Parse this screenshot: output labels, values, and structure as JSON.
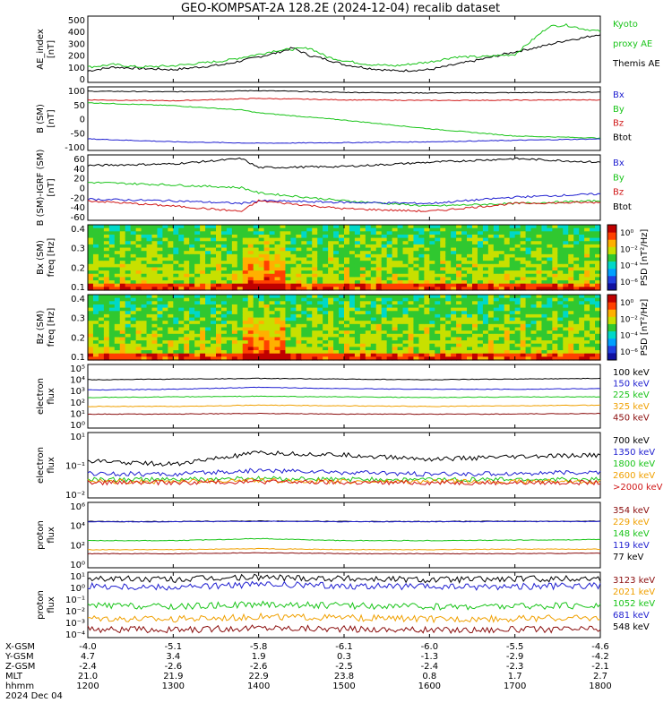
{
  "title": "GEO-KOMPSAT-2A 128.2E (2024-12-04) recalib dataset",
  "colors": {
    "black": "#000000",
    "blue": "#1f1fd0",
    "green": "#19c419",
    "red": "#d01818",
    "orange": "#f0a000",
    "darkred": "#8a0c0c",
    "lightgreen": "#36d636"
  },
  "chart_data": [
    {
      "id": "ae",
      "type": "line",
      "ylabel": "AE_index\n[nT]",
      "yticks": [
        "500",
        "400",
        "300",
        "200",
        "100",
        "0"
      ],
      "ylim": [
        0,
        520
      ],
      "legend": [
        {
          "label": "Kyoto",
          "color": "green"
        },
        {
          "label": "proxy AE",
          "color": "green"
        },
        {
          "label": "Themis AE",
          "color": "black"
        }
      ],
      "series": [
        {
          "name": "Themis AE",
          "color": "black",
          "x": [
            12.0,
            12.3,
            12.6,
            13.0,
            13.3,
            13.6,
            14.0,
            14.2,
            14.4,
            14.6,
            14.8,
            15.0,
            15.3,
            15.6,
            16.0,
            16.3,
            16.6,
            17.0,
            17.3,
            17.6,
            17.8,
            18.0
          ],
          "y": [
            90,
            120,
            110,
            100,
            120,
            140,
            200,
            230,
            270,
            210,
            180,
            140,
            110,
            90,
            100,
            140,
            180,
            240,
            280,
            330,
            350,
            380
          ]
        },
        {
          "name": "Kyoto proxy AE",
          "color": "green",
          "x": [
            12.0,
            12.3,
            12.6,
            13.0,
            13.3,
            13.6,
            14.0,
            14.2,
            14.4,
            14.6,
            14.8,
            15.0,
            15.3,
            15.6,
            16.0,
            16.3,
            16.6,
            17.0,
            17.2,
            17.4,
            17.6,
            17.8,
            18.0
          ],
          "y": [
            120,
            140,
            120,
            130,
            150,
            170,
            220,
            250,
            260,
            270,
            200,
            170,
            140,
            130,
            160,
            200,
            200,
            220,
            330,
            440,
            450,
            420,
            400
          ]
        }
      ]
    },
    {
      "id": "bsm",
      "type": "line",
      "ylabel": "B (SM)\n[nT]",
      "yticks": [
        "100",
        "50",
        "0",
        "-50",
        "-100"
      ],
      "ylim": [
        -105,
        115
      ],
      "legend": [
        {
          "label": "Bx",
          "color": "blue"
        },
        {
          "label": "By",
          "color": "green"
        },
        {
          "label": "Bz",
          "color": "red"
        },
        {
          "label": "Btot",
          "color": "black"
        }
      ],
      "series": [
        {
          "name": "Btot",
          "color": "black",
          "x": [
            12,
            13,
            14,
            15,
            16,
            17,
            18
          ],
          "y": [
            100,
            98,
            102,
            96,
            94,
            95,
            97
          ]
        },
        {
          "name": "Bz",
          "color": "red",
          "x": [
            12,
            13,
            14,
            15,
            16,
            17,
            18
          ],
          "y": [
            70,
            67,
            75,
            70,
            68,
            69,
            70
          ]
        },
        {
          "name": "By",
          "color": "green",
          "x": [
            12,
            13,
            13.8,
            14,
            15,
            16,
            17,
            18
          ],
          "y": [
            60,
            50,
            35,
            25,
            0,
            -30,
            -55,
            -62
          ]
        },
        {
          "name": "Bx",
          "color": "blue",
          "x": [
            12,
            13,
            14,
            15,
            16,
            17,
            18
          ],
          "y": [
            -65,
            -75,
            -80,
            -78,
            -75,
            -70,
            -65
          ]
        }
      ]
    },
    {
      "id": "bdiff",
      "type": "line",
      "ylabel": "B (SM)-IGRF (SM)\n[nT]",
      "yticks": [
        "60",
        "40",
        "20",
        "0",
        "-20",
        "-40",
        "-60"
      ],
      "ylim": [
        -62,
        62
      ],
      "legend": [
        {
          "label": "Bx",
          "color": "blue"
        },
        {
          "label": "By",
          "color": "green"
        },
        {
          "label": "Bz",
          "color": "red"
        },
        {
          "label": "Btot",
          "color": "black"
        }
      ],
      "series": [
        {
          "name": "Btot",
          "color": "black",
          "x": [
            12,
            13,
            13.8,
            14,
            15,
            16,
            17,
            18
          ],
          "y": [
            42,
            45,
            55,
            38,
            40,
            48,
            55,
            48
          ]
        },
        {
          "name": "By",
          "color": "green",
          "x": [
            12,
            13,
            13.8,
            14,
            15,
            16,
            17,
            18
          ],
          "y": [
            10,
            5,
            0,
            -10,
            -25,
            -35,
            -30,
            -25
          ]
        },
        {
          "name": "Bx",
          "color": "blue",
          "x": [
            12,
            13,
            13.8,
            14,
            15,
            16,
            17,
            18
          ],
          "y": [
            -22,
            -25,
            -30,
            -25,
            -28,
            -30,
            -18,
            -12
          ]
        },
        {
          "name": "Bz",
          "color": "red",
          "x": [
            12,
            13,
            13.8,
            14,
            15,
            16,
            17,
            18
          ],
          "y": [
            -25,
            -35,
            -45,
            -25,
            -40,
            -45,
            -30,
            -28
          ]
        }
      ]
    },
    {
      "id": "bx_spec",
      "type": "heatmap",
      "ylabel": "Bx (SM)\nfreq [Hz]",
      "yticks": [
        "0.4",
        "0.3",
        "0.2",
        "0.1"
      ],
      "ylim": [
        0.02,
        0.5
      ],
      "colorbar_label": "PSD [nT²/Hz]",
      "colorbar_ticks": [
        "10⁰",
        "10⁻²",
        "10⁻⁴",
        "10⁻⁶"
      ]
    },
    {
      "id": "bz_spec",
      "type": "heatmap",
      "ylabel": "Bz (SM)\nfreq [Hz]",
      "yticks": [
        "0.4",
        "0.3",
        "0.2",
        "0.1"
      ],
      "ylim": [
        0.02,
        0.5
      ],
      "colorbar_label": "PSD [nT²/Hz]",
      "colorbar_ticks": [
        "10⁰",
        "10⁻²",
        "10⁻⁴",
        "10⁻⁶"
      ]
    },
    {
      "id": "eflux1",
      "type": "line",
      "ylog": true,
      "ylabel": "electron\nflux",
      "yticks": [
        "10⁵",
        "10⁴",
        "10³",
        "10²",
        "10¹",
        "10⁰"
      ],
      "ylim": [
        0,
        5
      ],
      "legend": [
        {
          "label": "100 keV",
          "color": "black"
        },
        {
          "label": "150 keV",
          "color": "blue"
        },
        {
          "label": "225 keV",
          "color": "green"
        },
        {
          "label": "325 keV",
          "color": "orange"
        },
        {
          "label": "450 keV",
          "color": "darkred"
        }
      ],
      "series": [
        {
          "name": "100 keV",
          "color": "black",
          "x": [
            12,
            13,
            14,
            15,
            16,
            17,
            18
          ],
          "y": [
            3.8,
            3.85,
            3.9,
            3.85,
            3.8,
            3.85,
            3.9
          ]
        },
        {
          "name": "150 keV",
          "color": "blue",
          "x": [
            12,
            13,
            14,
            15,
            16,
            17,
            18
          ],
          "y": [
            3.0,
            3.05,
            3.2,
            3.1,
            3.05,
            3.05,
            3.1
          ]
        },
        {
          "name": "225 keV",
          "color": "green",
          "x": [
            12,
            13,
            14,
            15,
            16,
            17,
            18
          ],
          "y": [
            2.4,
            2.45,
            2.5,
            2.45,
            2.4,
            2.45,
            2.45
          ]
        },
        {
          "name": "325 keV",
          "color": "orange",
          "x": [
            12,
            13,
            14,
            15,
            16,
            17,
            18
          ],
          "y": [
            1.7,
            1.7,
            1.8,
            1.75,
            1.7,
            1.75,
            1.8
          ]
        },
        {
          "name": "450 keV",
          "color": "darkred",
          "x": [
            12,
            13,
            14,
            15,
            16,
            17,
            18
          ],
          "y": [
            1.1,
            1.1,
            1.15,
            1.1,
            1.1,
            1.1,
            1.15
          ]
        }
      ]
    },
    {
      "id": "eflux2",
      "type": "line",
      "ylog": true,
      "ylabel": "electron\nflux",
      "yticks": [
        "10¹",
        "10⁻¹",
        "10⁻²"
      ],
      "ylim": [
        -2.2,
        1
      ],
      "legend": [
        {
          "label": "700 keV",
          "color": "black"
        },
        {
          "label": "1350 keV",
          "color": "blue"
        },
        {
          "label": "1800 keV",
          "color": "green"
        },
        {
          "label": "2600 keV",
          "color": "orange"
        },
        {
          "label": ">2000 keV",
          "color": "red"
        }
      ],
      "series": [
        {
          "name": "700 keV",
          "color": "black",
          "x": [
            12,
            13,
            14,
            15,
            16,
            17,
            18
          ],
          "y": [
            -0.4,
            -0.55,
            0.0,
            -0.1,
            -0.3,
            -0.2,
            -0.1
          ]
        },
        {
          "name": "1350 keV",
          "color": "blue",
          "x": [
            12,
            13,
            14,
            15,
            16,
            17,
            18
          ],
          "y": [
            -1.0,
            -1.05,
            -0.85,
            -0.95,
            -1.05,
            -1.0,
            -0.95
          ]
        },
        {
          "name": "1800 keV",
          "color": "green",
          "x": [
            12,
            13,
            14,
            15,
            16,
            17,
            18
          ],
          "y": [
            -1.3,
            -1.3,
            -1.25,
            -1.3,
            -1.3,
            -1.3,
            -1.3
          ]
        },
        {
          "name": "2600 keV",
          "color": "orange",
          "x": [
            12,
            13,
            14,
            15,
            16,
            17,
            18
          ],
          "y": [
            -1.4,
            -1.4,
            -1.35,
            -1.4,
            -1.4,
            -1.4,
            -1.4
          ]
        },
        {
          "name": ">2000 keV",
          "color": "red",
          "x": [
            12,
            13,
            14,
            15,
            16,
            17,
            18
          ],
          "y": [
            -1.45,
            -1.45,
            -1.4,
            -1.45,
            -1.45,
            -1.45,
            -1.45
          ]
        }
      ]
    },
    {
      "id": "pflux1",
      "type": "line",
      "ylog": true,
      "ylabel": "proton\nflux",
      "yticks": [
        "10⁶",
        "10⁴",
        "10²",
        "10⁰"
      ],
      "ylim": [
        -0.5,
        6
      ],
      "legend": [
        {
          "label": "354 keV",
          "color": "darkred"
        },
        {
          "label": "229 keV",
          "color": "orange"
        },
        {
          "label": "148 keV",
          "color": "green"
        },
        {
          "label": "119 keV",
          "color": "blue"
        },
        {
          "label": "77 keV",
          "color": "black"
        }
      ],
      "series": [
        {
          "name": "77 keV",
          "color": "black",
          "x": [
            12,
            13,
            14,
            15,
            16,
            17,
            18
          ],
          "y": [
            4.1,
            4.1,
            4.15,
            4.1,
            4.1,
            4.12,
            4.12
          ]
        },
        {
          "name": "119 keV",
          "color": "blue",
          "x": [
            12,
            13,
            14,
            15,
            16,
            17,
            18
          ],
          "y": [
            4.08,
            4.08,
            4.12,
            4.08,
            4.08,
            4.1,
            4.1
          ]
        },
        {
          "name": "148 keV",
          "color": "green",
          "x": [
            12,
            13,
            14,
            15,
            16,
            17,
            18
          ],
          "y": [
            2.2,
            2.2,
            2.4,
            2.2,
            2.2,
            2.25,
            2.3
          ]
        },
        {
          "name": "229 keV",
          "color": "orange",
          "x": [
            12,
            13,
            14,
            15,
            16,
            17,
            18
          ],
          "y": [
            1.3,
            1.3,
            1.4,
            1.3,
            1.3,
            1.35,
            1.35
          ]
        },
        {
          "name": "354 keV",
          "color": "darkred",
          "x": [
            12,
            13,
            14,
            15,
            16,
            17,
            18
          ],
          "y": [
            0.9,
            0.9,
            1.0,
            0.9,
            0.9,
            0.9,
            0.95
          ]
        }
      ]
    },
    {
      "id": "pflux2",
      "type": "line",
      "ylog": true,
      "ylabel": "proton\nflux",
      "yticks": [
        "10¹",
        "10⁰",
        "10⁻¹",
        "10⁻²",
        "10⁻³",
        "10⁻⁴"
      ],
      "ylim": [
        -4.2,
        1.1
      ],
      "legend": [
        {
          "label": "3123 keV",
          "color": "darkred"
        },
        {
          "label": "2021 keV",
          "color": "orange"
        },
        {
          "label": "1052 keV",
          "color": "green"
        },
        {
          "label": "681 keV",
          "color": "blue"
        },
        {
          "label": "548 keV",
          "color": "black"
        }
      ],
      "series": [
        {
          "name": "548 keV",
          "color": "black",
          "x": [
            12,
            13,
            14,
            15,
            16,
            17,
            18
          ],
          "y": [
            0.6,
            0.5,
            0.7,
            0.6,
            0.5,
            0.55,
            0.6
          ]
        },
        {
          "name": "681 keV",
          "color": "blue",
          "x": [
            12,
            13,
            14,
            15,
            16,
            17,
            18
          ],
          "y": [
            0.0,
            -0.1,
            0.1,
            0.0,
            -0.1,
            -0.05,
            0.0
          ]
        },
        {
          "name": "1052 keV",
          "color": "green",
          "x": [
            12,
            13,
            14,
            15,
            16,
            17,
            18
          ],
          "y": [
            -1.6,
            -1.7,
            -1.5,
            -1.6,
            -1.7,
            -1.65,
            -1.6
          ]
        },
        {
          "name": "2021 keV",
          "color": "orange",
          "x": [
            12,
            13,
            14,
            15,
            16,
            17,
            18
          ],
          "y": [
            -2.6,
            -2.7,
            -2.5,
            -2.6,
            -2.7,
            -2.65,
            -2.6
          ]
        },
        {
          "name": "3123 keV",
          "color": "darkred",
          "x": [
            12,
            13,
            14,
            15,
            16,
            17,
            18
          ],
          "y": [
            -3.5,
            -3.6,
            -3.4,
            -3.5,
            -3.6,
            -3.55,
            -3.5
          ]
        }
      ]
    }
  ],
  "xaxis": {
    "ticks_hours": [
      12,
      13,
      14,
      15,
      16,
      17,
      18
    ],
    "rows": [
      {
        "label": "X-GSM",
        "values": [
          "-4.0",
          "-5.1",
          "-5.8",
          "-6.1",
          "-6.0",
          "-5.5",
          "-4.6"
        ]
      },
      {
        "label": "Y-GSM",
        "values": [
          "4.7",
          "3.4",
          "1.9",
          "0.3",
          "-1.3",
          "-2.9",
          "-4.2"
        ]
      },
      {
        "label": "Z-GSM",
        "values": [
          "-2.4",
          "-2.6",
          "-2.6",
          "-2.5",
          "-2.4",
          "-2.3",
          "-2.1"
        ]
      },
      {
        "label": "MLT",
        "values": [
          "21.0",
          "21.9",
          "22.9",
          "23.8",
          "0.8",
          "1.7",
          "2.7"
        ]
      },
      {
        "label": "hhmm",
        "values": [
          "1200",
          "1300",
          "1400",
          "1500",
          "1600",
          "1700",
          "1800"
        ]
      }
    ],
    "date": "2024 Dec 04"
  }
}
